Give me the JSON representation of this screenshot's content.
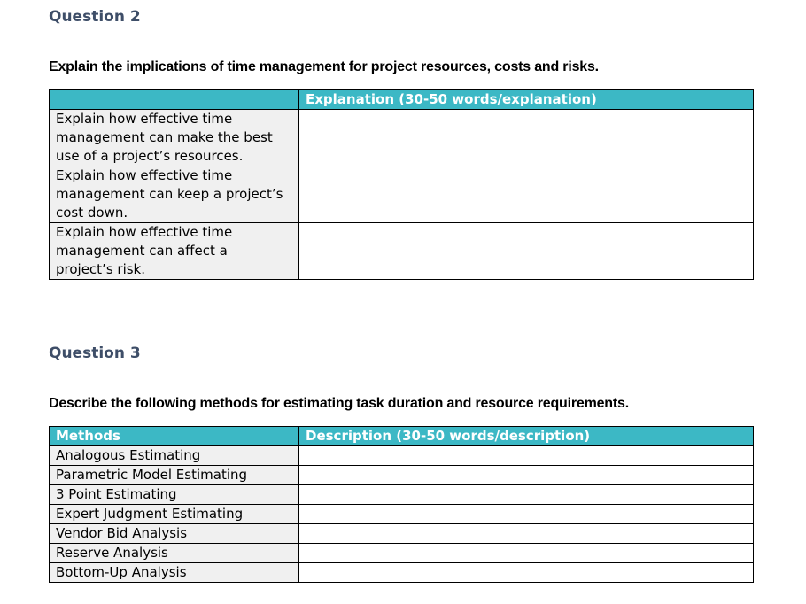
{
  "colors": {
    "heading_text": "#3E4E68",
    "table_header_bg": "#3CB8C5",
    "table_header_text": "#FFFFFF",
    "label_cell_bg": "#F0F0F0",
    "border": "#000000",
    "page_bg": "#FFFFFF"
  },
  "question2": {
    "heading": "Question 2",
    "prompt": "Explain the implications of time management for project resources, costs and risks.",
    "table": {
      "header_label": "",
      "header_answer": "Explanation (30-50 words/explanation)",
      "rows": [
        {
          "label": "Explain how effective time\nmanagement can make the best\nuse of a project’s resources.",
          "value": ""
        },
        {
          "label": "Explain how effective time\nmanagement can keep a project’s\ncost down.",
          "value": ""
        },
        {
          "label": "Explain how effective time\nmanagement can affect a\nproject’s risk.",
          "value": ""
        }
      ]
    }
  },
  "question3": {
    "heading": "Question 3",
    "prompt": "Describe the following methods for estimating task duration and resource requirements.",
    "table": {
      "header_label": "Methods",
      "header_answer": "Description (30-50 words/description)",
      "rows": [
        {
          "label": "Analogous Estimating",
          "value": ""
        },
        {
          "label": "Parametric Model Estimating",
          "value": ""
        },
        {
          "label": "3 Point Estimating",
          "value": ""
        },
        {
          "label": "Expert Judgment Estimating",
          "value": ""
        },
        {
          "label": "Vendor Bid Analysis",
          "value": ""
        },
        {
          "label": "Reserve Analysis",
          "value": ""
        },
        {
          "label": "Bottom-Up Analysis",
          "value": ""
        }
      ]
    }
  }
}
